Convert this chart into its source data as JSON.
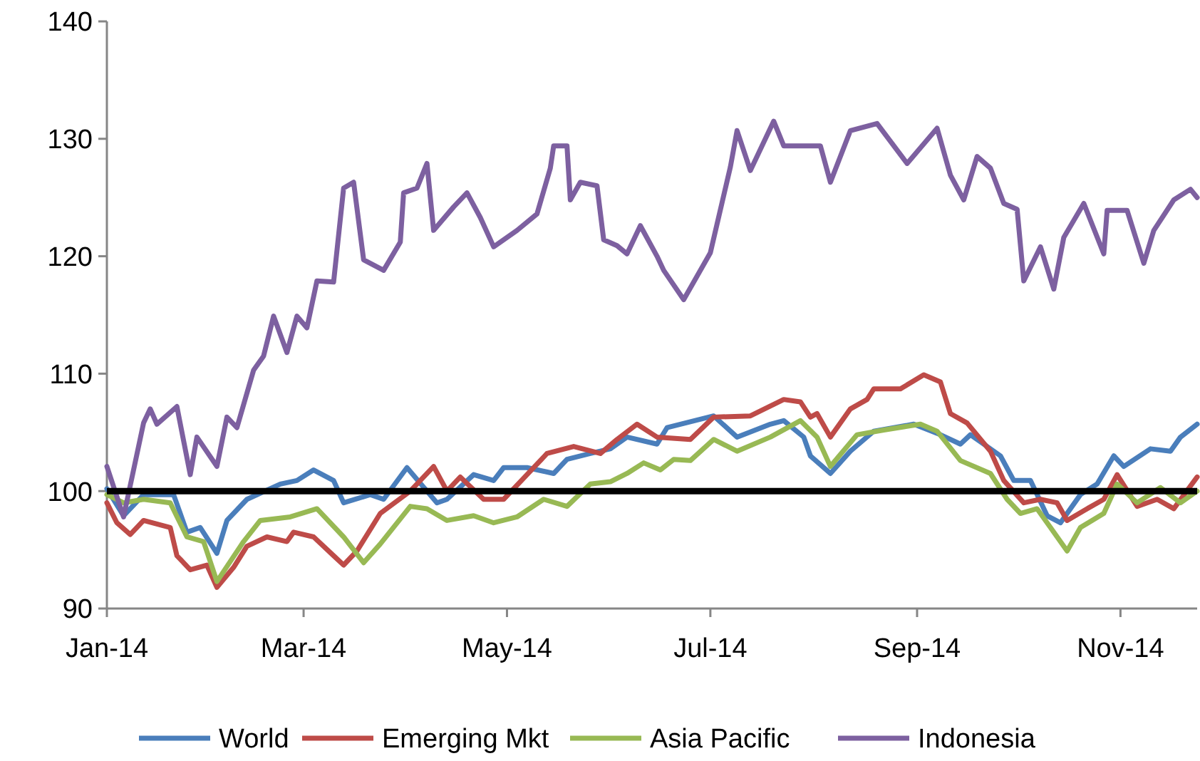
{
  "chart_data": {
    "type": "line",
    "xlim": [
      "2014-01-01",
      "2014-11-24"
    ],
    "ylim": [
      90,
      140
    ],
    "yticks": [
      90,
      100,
      110,
      120,
      130,
      140
    ],
    "xticks": [
      {
        "value": "2014-01-01",
        "label": "Jan-14"
      },
      {
        "value": "2014-03-01",
        "label": "Mar-14"
      },
      {
        "value": "2014-05-01",
        "label": "May-14"
      },
      {
        "value": "2014-07-01",
        "label": "Jul-14"
      },
      {
        "value": "2014-09-01",
        "label": "Sep-14"
      },
      {
        "value": "2014-11-01",
        "label": "Nov-14"
      }
    ],
    "legend": "bottom",
    "grid": false,
    "marker": "none",
    "line_style": "solid",
    "ref_lines": [
      {
        "axis": "y",
        "value": 100,
        "color": "#000000"
      }
    ],
    "series": [
      {
        "name": "World",
        "color": "#4a7ebb",
        "x": [
          "2014-01-01",
          "2014-01-06",
          "2014-01-12",
          "2014-01-21",
          "2014-01-25",
          "2014-01-29",
          "2014-02-03",
          "2014-02-06",
          "2014-02-12",
          "2014-02-22",
          "2014-02-27",
          "2014-03-04",
          "2014-03-10",
          "2014-03-13",
          "2014-03-21",
          "2014-03-25",
          "2014-04-01",
          "2014-04-10",
          "2014-04-13",
          "2014-04-21",
          "2014-04-27",
          "2014-04-30",
          "2014-05-07",
          "2014-05-15",
          "2014-05-19",
          "2014-05-26",
          "2014-06-01",
          "2014-06-06",
          "2014-06-15",
          "2014-06-18",
          "2014-07-02",
          "2014-07-09",
          "2014-07-19",
          "2014-07-23",
          "2014-07-29",
          "2014-07-31",
          "2014-08-06",
          "2014-08-12",
          "2014-08-19",
          "2014-08-31",
          "2014-09-08",
          "2014-09-14",
          "2014-09-17",
          "2014-09-26",
          "2014-09-30",
          "2014-10-05",
          "2014-10-10",
          "2014-10-14",
          "2014-10-20",
          "2014-10-25",
          "2014-10-30",
          "2014-11-02",
          "2014-11-10",
          "2014-11-16",
          "2014-11-19",
          "2014-11-24"
        ],
        "values": [
          100.2,
          97.9,
          99.7,
          99.7,
          96.5,
          96.9,
          94.7,
          97.5,
          99.3,
          100.6,
          100.9,
          101.8,
          100.9,
          99,
          99.7,
          99.3,
          102,
          99,
          99.3,
          101.4,
          100.9,
          102,
          102,
          101.5,
          102.7,
          103.2,
          103.6,
          104.6,
          104,
          105.4,
          106.4,
          104.6,
          105.7,
          106,
          104.6,
          103,
          101.5,
          103.4,
          105.1,
          105.7,
          104.8,
          104,
          104.8,
          103,
          100.9,
          100.9,
          97.9,
          97.3,
          99.7,
          100.6,
          103,
          102.1,
          103.6,
          103.4,
          104.6,
          105.7
        ]
      },
      {
        "name": "Emerging Mkt",
        "color": "#be4b48",
        "x": [
          "2014-01-01",
          "2014-01-04",
          "2014-01-08",
          "2014-01-12",
          "2014-01-20",
          "2014-01-22",
          "2014-01-26",
          "2014-01-31",
          "2014-02-03",
          "2014-02-08",
          "2014-02-12",
          "2014-02-18",
          "2014-02-24",
          "2014-02-26",
          "2014-03-04",
          "2014-03-10",
          "2014-03-13",
          "2014-03-17",
          "2014-03-24",
          "2014-04-02",
          "2014-04-09",
          "2014-04-13",
          "2014-04-17",
          "2014-04-24",
          "2014-04-30",
          "2014-05-07",
          "2014-05-13",
          "2014-05-21",
          "2014-05-29",
          "2014-06-03",
          "2014-06-09",
          "2014-06-15",
          "2014-06-25",
          "2014-07-02",
          "2014-07-13",
          "2014-07-23",
          "2014-07-28",
          "2014-07-31",
          "2014-08-02",
          "2014-08-06",
          "2014-08-12",
          "2014-08-17",
          "2014-08-19",
          "2014-08-27",
          "2014-09-03",
          "2014-09-08",
          "2014-09-11",
          "2014-09-16",
          "2014-09-23",
          "2014-09-27",
          "2014-10-03",
          "2014-10-08",
          "2014-10-13",
          "2014-10-16",
          "2014-10-22",
          "2014-10-27",
          "2014-10-31",
          "2014-11-06",
          "2014-11-12",
          "2014-11-17",
          "2014-11-24"
        ],
        "values": [
          99,
          97.3,
          96.3,
          97.5,
          96.9,
          94.5,
          93.3,
          93.7,
          91.8,
          93.5,
          95.3,
          96.1,
          95.7,
          96.5,
          96.1,
          94.5,
          93.7,
          94.9,
          98.1,
          100,
          102.1,
          100,
          101.2,
          99.3,
          99.3,
          101.4,
          103.2,
          103.8,
          103.2,
          104.4,
          105.7,
          104.6,
          104.4,
          106.3,
          106.4,
          107.8,
          107.6,
          106.3,
          106.6,
          104.6,
          107,
          107.8,
          108.7,
          108.7,
          109.9,
          109.3,
          106.6,
          105.8,
          103.4,
          100.9,
          99,
          99.3,
          99,
          97.5,
          98.5,
          99.3,
          101.4,
          98.7,
          99.3,
          98.5,
          101.2
        ]
      },
      {
        "name": "Asia Pacific",
        "color": "#98b954",
        "x": [
          "2014-01-01",
          "2014-01-06",
          "2014-01-12",
          "2014-01-20",
          "2014-01-25",
          "2014-01-30",
          "2014-02-03",
          "2014-02-11",
          "2014-02-16",
          "2014-02-25",
          "2014-03-05",
          "2014-03-13",
          "2014-03-19",
          "2014-03-24",
          "2014-04-02",
          "2014-04-07",
          "2014-04-13",
          "2014-04-21",
          "2014-04-27",
          "2014-05-04",
          "2014-05-12",
          "2014-05-19",
          "2014-05-26",
          "2014-06-01",
          "2014-06-06",
          "2014-06-11",
          "2014-06-16",
          "2014-06-20",
          "2014-06-25",
          "2014-07-02",
          "2014-07-09",
          "2014-07-19",
          "2014-07-28",
          "2014-08-02",
          "2014-08-06",
          "2014-08-14",
          "2014-08-22",
          "2014-09-02",
          "2014-09-07",
          "2014-09-14",
          "2014-09-23",
          "2014-09-28",
          "2014-10-02",
          "2014-10-07",
          "2014-10-11",
          "2014-10-16",
          "2014-10-20",
          "2014-10-27",
          "2014-10-31",
          "2014-11-06",
          "2014-11-13",
          "2014-11-19",
          "2014-11-24"
        ],
        "values": [
          99.7,
          99,
          99.3,
          99,
          96.1,
          95.7,
          92.3,
          95.7,
          97.5,
          97.8,
          98.5,
          96.1,
          93.9,
          95.5,
          98.7,
          98.5,
          97.5,
          97.9,
          97.3,
          97.8,
          99.3,
          98.7,
          100.6,
          100.8,
          101.5,
          102.4,
          101.8,
          102.7,
          102.6,
          104.4,
          103.4,
          104.6,
          106,
          104.6,
          102.1,
          104.8,
          105.2,
          105.7,
          105.1,
          102.6,
          101.5,
          99.3,
          98.1,
          98.5,
          96.9,
          94.9,
          96.9,
          98.1,
          100.6,
          99,
          100.3,
          99,
          100
        ]
      },
      {
        "name": "Indonesia",
        "color": "#7d60a0",
        "x": [
          "2014-01-01",
          "2014-01-06",
          "2014-01-12",
          "2014-01-14",
          "2014-01-16",
          "2014-01-22",
          "2014-01-26",
          "2014-01-28",
          "2014-02-03",
          "2014-02-06",
          "2014-02-09",
          "2014-02-14",
          "2014-02-17",
          "2014-02-20",
          "2014-02-24",
          "2014-02-27",
          "2014-03-02",
          "2014-03-05",
          "2014-03-10",
          "2014-03-13",
          "2014-03-16",
          "2014-03-19",
          "2014-03-25",
          "2014-03-30",
          "2014-03-31",
          "2014-04-04",
          "2014-04-07",
          "2014-04-09",
          "2014-04-15",
          "2014-04-19",
          "2014-04-23",
          "2014-04-27",
          "2014-05-04",
          "2014-05-10",
          "2014-05-14",
          "2014-05-15",
          "2014-05-19",
          "2014-05-20",
          "2014-05-23",
          "2014-05-28",
          "2014-05-30",
          "2014-06-03",
          "2014-06-06",
          "2014-06-10",
          "2014-06-15",
          "2014-06-17",
          "2014-06-23",
          "2014-07-01",
          "2014-07-07",
          "2014-07-09",
          "2014-07-13",
          "2014-07-20",
          "2014-07-23",
          "2014-08-03",
          "2014-08-06",
          "2014-08-12",
          "2014-08-20",
          "2014-08-29",
          "2014-09-07",
          "2014-09-11",
          "2014-09-15",
          "2014-09-19",
          "2014-09-23",
          "2014-09-27",
          "2014-10-01",
          "2014-10-03",
          "2014-10-08",
          "2014-10-12",
          "2014-10-15",
          "2014-10-21",
          "2014-10-27",
          "2014-10-28",
          "2014-11-03",
          "2014-11-08",
          "2014-11-11",
          "2014-11-17",
          "2014-11-22",
          "2014-11-24"
        ],
        "values": [
          102.1,
          97.8,
          105.8,
          107,
          105.7,
          107.2,
          101.4,
          104.6,
          102.1,
          106.3,
          105.4,
          110.3,
          111.5,
          114.9,
          111.8,
          114.9,
          113.9,
          117.9,
          117.8,
          125.8,
          126.3,
          119.7,
          118.8,
          121.2,
          125.4,
          125.8,
          127.9,
          122.2,
          124.2,
          125.4,
          123.3,
          120.8,
          122.2,
          123.6,
          127.5,
          129.4,
          129.4,
          124.8,
          126.3,
          126,
          121.4,
          120.9,
          120.2,
          122.6,
          120,
          118.8,
          116.3,
          120.3,
          127.6,
          130.7,
          127.3,
          131.5,
          129.4,
          129.4,
          126.3,
          130.7,
          131.3,
          127.9,
          130.9,
          126.9,
          124.8,
          128.5,
          127.5,
          124.5,
          124,
          117.9,
          120.8,
          117.2,
          121.6,
          124.5,
          120.2,
          123.9,
          123.9,
          119.4,
          122.2,
          124.8,
          125.7,
          125
        ]
      }
    ]
  }
}
